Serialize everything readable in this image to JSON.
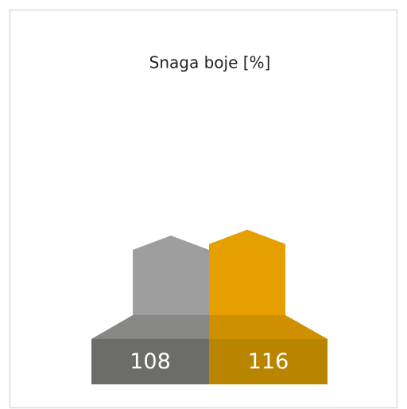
{
  "chart_data": {
    "type": "bar",
    "title": "Snaga boje [%]",
    "values": [
      108,
      116
    ],
    "colors": [
      "#9d9e9d",
      "#e5a000"
    ],
    "platform_colors": [
      "#878786",
      "#cf9000"
    ],
    "base_colors": [
      "#6c6c6b",
      "#b98500"
    ]
  }
}
